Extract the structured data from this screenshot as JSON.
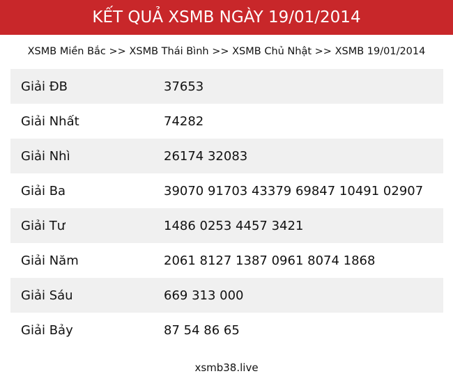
{
  "header": {
    "title": "KẾT QUẢ XSMB NGÀY 19/01/2014"
  },
  "breadcrumb": [
    "XSMB Miền Bắc",
    "XSMB Thái Bình",
    "XSMB Chủ Nhật",
    "XSMB 19/01/2014"
  ],
  "breadcrumb_sep": ">>",
  "results": [
    {
      "label": "Giải ĐB",
      "value": "37653"
    },
    {
      "label": "Giải Nhất",
      "value": "74282"
    },
    {
      "label": "Giải Nhì",
      "value": "26174 32083"
    },
    {
      "label": "Giải Ba",
      "value": "39070 91703 43379 69847 10491 02907"
    },
    {
      "label": "Giải Tư",
      "value": "1486 0253 4457 3421"
    },
    {
      "label": "Giải Năm",
      "value": "2061 8127 1387 0961 8074 1868"
    },
    {
      "label": "Giải Sáu",
      "value": "669 313 000"
    },
    {
      "label": "Giải Bảy",
      "value": "87 54 86 65"
    }
  ],
  "footer": {
    "site": "xsmb38.live"
  },
  "colors": {
    "header_bg": "#c8272a",
    "row_alt": "#f0f0f0"
  }
}
